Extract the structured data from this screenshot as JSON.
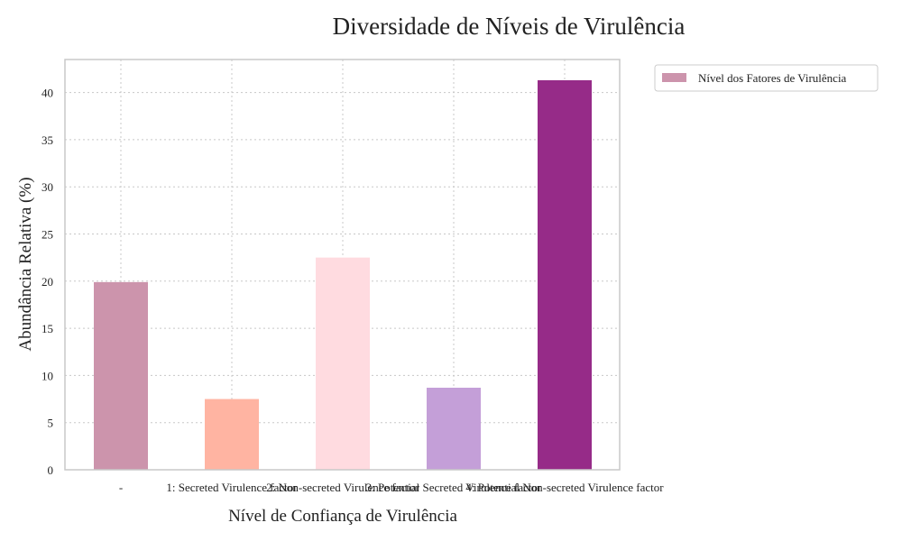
{
  "chart_data": {
    "type": "bar",
    "title": "Diversidade de Níveis de Virulência",
    "xlabel": "Nível de Confiança de Virulência",
    "ylabel": "Abundância Relativa (%)",
    "categories": [
      "-",
      "1: Secreted Virulence factor",
      "2: Non-secreted Virulence factor",
      "3: Potential Secreted Virulence factor",
      "4: Potential Non-secreted Virulence factor"
    ],
    "series": [
      {
        "name": "Nível dos Fatores de Virulência",
        "values": [
          19.9,
          7.5,
          22.5,
          8.7,
          41.3
        ],
        "colors": [
          "#cc94ac",
          "#ffb4a2",
          "#ffdbe0",
          "#c49fd8",
          "#962b88"
        ]
      }
    ],
    "ylim": [
      0,
      43.5
    ],
    "yticks": [
      0,
      5,
      10,
      15,
      20,
      25,
      30,
      35,
      40
    ],
    "grid": true,
    "legend_position": "outside-top-right"
  }
}
